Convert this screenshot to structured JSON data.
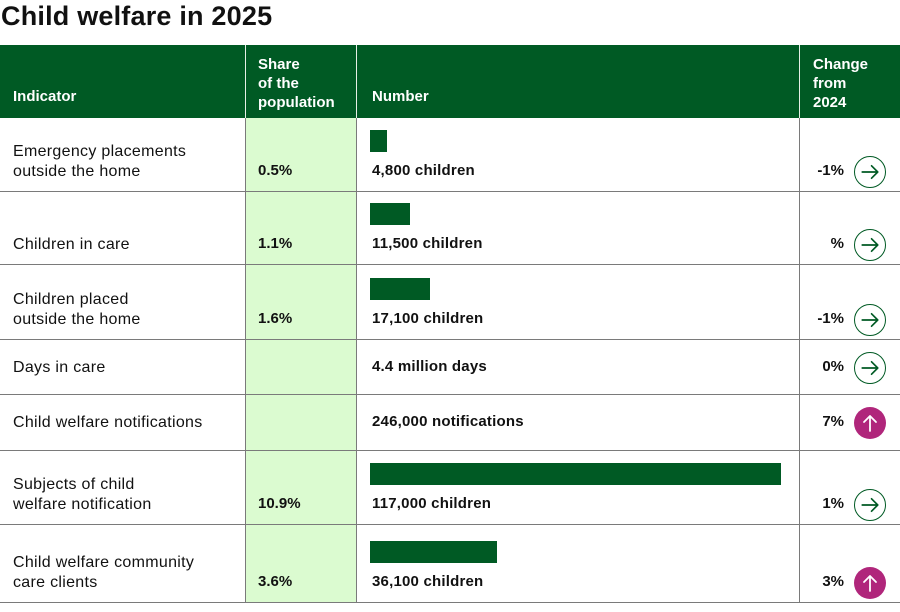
{
  "title": "Child welfare in 2025",
  "headers": {
    "indicator": "Indicator",
    "share": [
      "Share",
      "of the",
      "population"
    ],
    "number": "Number",
    "change": [
      "Change",
      "from",
      "2024"
    ]
  },
  "colors": {
    "header_bg": "#005a24",
    "bar": "#005a24",
    "share_column_bg": "#dbfbd0",
    "up_icon": "#b0267b"
  },
  "chart_data": {
    "type": "table",
    "title": "Child welfare in 2025",
    "columns": [
      "Indicator",
      "Share of the population",
      "Number",
      "Change from 2024"
    ],
    "rows": [
      {
        "indicator": [
          "Emergency placements",
          "outside the home"
        ],
        "share": "0.5%",
        "number_label": "4,800 children",
        "number": 4800,
        "change": "-1%",
        "trend": "flat",
        "trend_icon": "arrow-right-icon"
      },
      {
        "indicator": [
          "Children in care"
        ],
        "share": "1.1%",
        "number_label": "11,500 children",
        "number": 11500,
        "change": "%",
        "trend": "flat",
        "trend_icon": "arrow-right-icon"
      },
      {
        "indicator": [
          "Children placed",
          "outside the home"
        ],
        "share": "1.6%",
        "number_label": "17,100 children",
        "number": 17100,
        "change": "-1%",
        "trend": "flat",
        "trend_icon": "arrow-right-icon"
      },
      {
        "indicator": [
          "Days in care"
        ],
        "share": "",
        "number_label": "4.4 million days",
        "number": null,
        "change": "0%",
        "trend": "flat",
        "trend_icon": "arrow-right-icon"
      },
      {
        "indicator": [
          "Child welfare notifications"
        ],
        "share": "",
        "number_label": "246,000 notifications",
        "number": null,
        "change": "7%",
        "trend": "up",
        "trend_icon": "arrow-up-icon"
      },
      {
        "indicator": [
          "Subjects of child",
          "welfare notification"
        ],
        "share": "10.9%",
        "number_label": "117,000 children",
        "number": 117000,
        "change": "1%",
        "trend": "flat",
        "trend_icon": "arrow-right-icon"
      },
      {
        "indicator": [
          "Child welfare community",
          "care clients"
        ],
        "share": "3.6%",
        "number_label": "36,100 children",
        "number": 36100,
        "change": "3%",
        "trend": "up",
        "trend_icon": "arrow-up-icon"
      }
    ],
    "bar_max": 117000
  }
}
